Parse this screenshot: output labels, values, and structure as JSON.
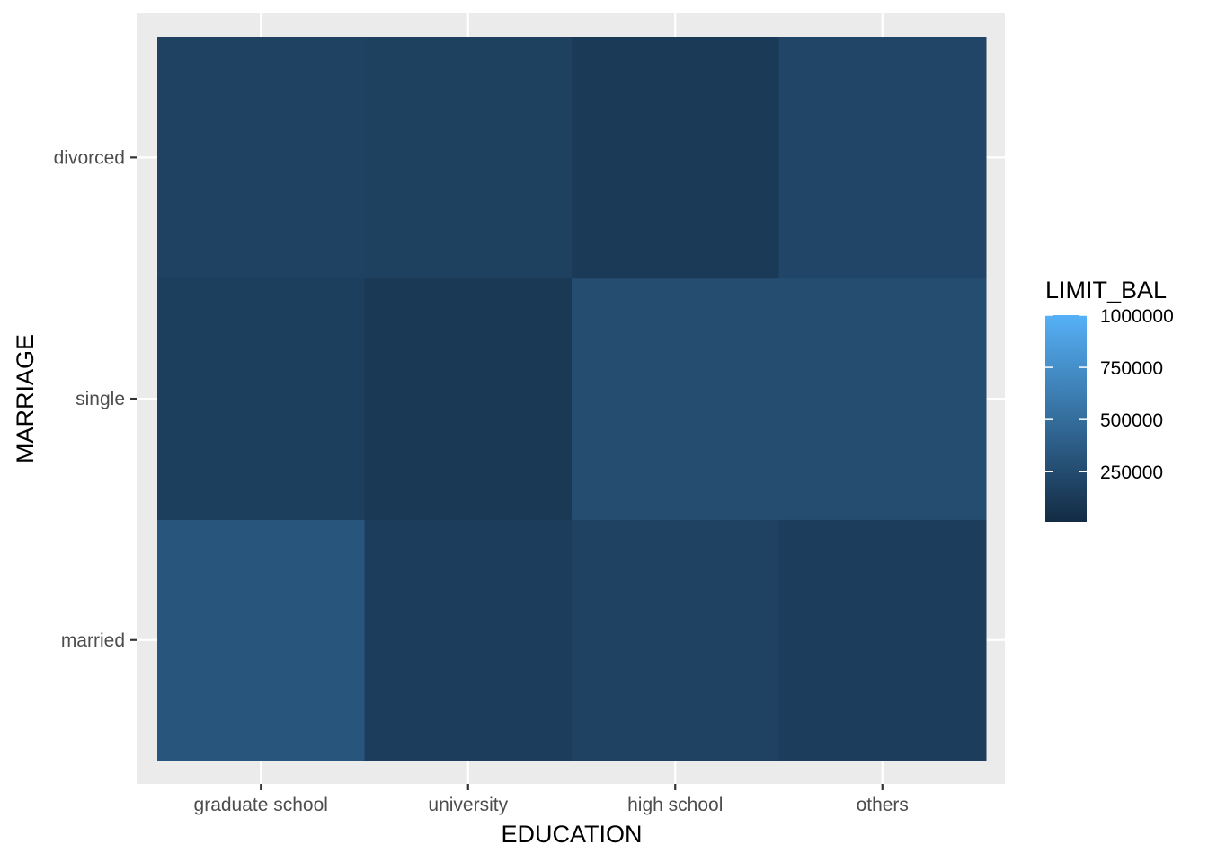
{
  "chart_data": {
    "type": "heatmap",
    "title": "",
    "xlabel": "EDUCATION",
    "ylabel": "MARRIAGE",
    "x_categories": [
      "graduate school",
      "university",
      "high school",
      "others"
    ],
    "y_categories": [
      "married",
      "single",
      "divorced"
    ],
    "cells": [
      {
        "x": "graduate school",
        "y": "married",
        "value": 320000
      },
      {
        "x": "university",
        "y": "married",
        "value": 150000
      },
      {
        "x": "high school",
        "y": "married",
        "value": 180000
      },
      {
        "x": "others",
        "y": "married",
        "value": 140000
      },
      {
        "x": "graduate school",
        "y": "single",
        "value": 160000
      },
      {
        "x": "university",
        "y": "single",
        "value": 110000
      },
      {
        "x": "high school",
        "y": "single",
        "value": 260000
      },
      {
        "x": "others",
        "y": "single",
        "value": 260000
      },
      {
        "x": "graduate school",
        "y": "divorced",
        "value": 180000
      },
      {
        "x": "university",
        "y": "divorced",
        "value": 170000
      },
      {
        "x": "high school",
        "y": "divorced",
        "value": 120000
      },
      {
        "x": "others",
        "y": "divorced",
        "value": 200000
      }
    ],
    "color_scale": {
      "low_color": "#132B43",
      "high_color": "#56B1F7",
      "min": 10000,
      "max": 1000000
    },
    "legend": {
      "title": "LIMIT_BAL",
      "placement": "right",
      "ticks": [
        250000,
        500000,
        750000,
        1000000
      ]
    },
    "grid": true,
    "panel_background": "#ebebeb",
    "grid_color": "#ffffff"
  }
}
